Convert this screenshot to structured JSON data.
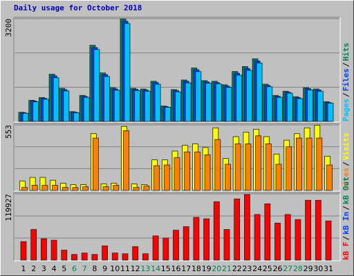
{
  "chart_data": [
    {
      "type": "bar",
      "title": "Daily usage for October 2018",
      "ylim": [
        0,
        3200
      ],
      "yticks": [
        3200
      ],
      "grid_divisions": 3,
      "legend_separator": "/",
      "series": [
        {
          "name": "Hits",
          "color": "#00805c",
          "values": [
            285,
            660,
            745,
            1470,
            1030,
            305,
            810,
            2370,
            1510,
            1050,
            3190,
            1030,
            1010,
            1250,
            480,
            990,
            1290,
            1665,
            1270,
            1250,
            1140,
            1555,
            1710,
            1950,
            1160,
            810,
            940,
            770,
            1050,
            1010,
            615
          ]
        },
        {
          "name": "Files",
          "color": "#0040ff",
          "values": [
            270,
            640,
            720,
            1420,
            990,
            290,
            780,
            2300,
            1460,
            1010,
            3120,
            1000,
            980,
            1210,
            460,
            960,
            1250,
            1610,
            1230,
            1210,
            1100,
            1500,
            1650,
            1880,
            1120,
            780,
            910,
            740,
            1020,
            980,
            590
          ]
        },
        {
          "name": "Pages",
          "color": "#00c0ff",
          "values": [
            255,
            610,
            690,
            1360,
            950,
            270,
            750,
            2240,
            1400,
            970,
            3050,
            960,
            940,
            1160,
            440,
            920,
            1200,
            1550,
            1190,
            1170,
            1060,
            1440,
            1590,
            1820,
            1080,
            750,
            880,
            710,
            980,
            940,
            570
          ]
        }
      ]
    },
    {
      "type": "bar",
      "ylim": [
        0,
        553
      ],
      "yticks": [
        553
      ],
      "grid_divisions": 3,
      "legend_separator": "/",
      "series": [
        {
          "name": "Visits",
          "color": "#ffff00",
          "values": [
            80,
            110,
            110,
            86,
            61,
            49,
            49,
            479,
            55,
            61,
            540,
            55,
            49,
            258,
            258,
            332,
            381,
            393,
            362,
            528,
            270,
            454,
            491,
            516,
            454,
            307,
            424,
            479,
            528,
            550,
            289
          ]
        },
        {
          "name": "Sites",
          "color": "#ff8000",
          "values": [
            25,
            43,
            43,
            43,
            25,
            25,
            31,
            442,
            31,
            43,
            504,
            25,
            37,
            209,
            215,
            276,
            325,
            325,
            301,
            430,
            221,
            393,
            393,
            461,
            393,
            221,
            368,
            442,
            442,
            442,
            215
          ]
        }
      ]
    },
    {
      "type": "bar",
      "ylim": [
        0,
        119927
      ],
      "yticks": [
        119927
      ],
      "grid_divisions": 3,
      "legend_separator": "/",
      "categories": [
        "1",
        "2",
        "3",
        "4",
        "5",
        "6",
        "7",
        "8",
        "9",
        "10",
        "11",
        "12",
        "13",
        "14",
        "15",
        "16",
        "17",
        "18",
        "19",
        "20",
        "21",
        "22",
        "23",
        "24",
        "25",
        "26",
        "27",
        "28",
        "29",
        "30",
        "31"
      ],
      "category_colors": [
        "#000000",
        "#000000",
        "#000000",
        "#000000",
        "#000000",
        "#00805c",
        "#00805c",
        "#000000",
        "#000000",
        "#000000",
        "#000000",
        "#000000",
        "#00805c",
        "#00805c",
        "#000000",
        "#000000",
        "#000000",
        "#000000",
        "#000000",
        "#00805c",
        "#00805c",
        "#000000",
        "#000000",
        "#000000",
        "#000000",
        "#000000",
        "#00805c",
        "#00805c",
        "#000000",
        "#000000",
        "#000000"
      ],
      "series": [
        {
          "name": "kB F",
          "color": "#ff0000",
          "values": [
            33500,
            55500,
            38700,
            36100,
            18100,
            10300,
            12900,
            10300,
            25800,
            12900,
            11600,
            24500,
            11600,
            43900,
            40000,
            54200,
            60600,
            77400,
            74800,
            105800,
            55500,
            110900,
            118700,
            82600,
            101900,
            67100,
            82600,
            73500,
            108400,
            108400,
            71000
          ]
        }
      ],
      "extra_legend": [
        {
          "name": "kB In",
          "color": "#0040ff"
        },
        {
          "name": "kB Out",
          "color": "#00805c"
        }
      ]
    }
  ]
}
